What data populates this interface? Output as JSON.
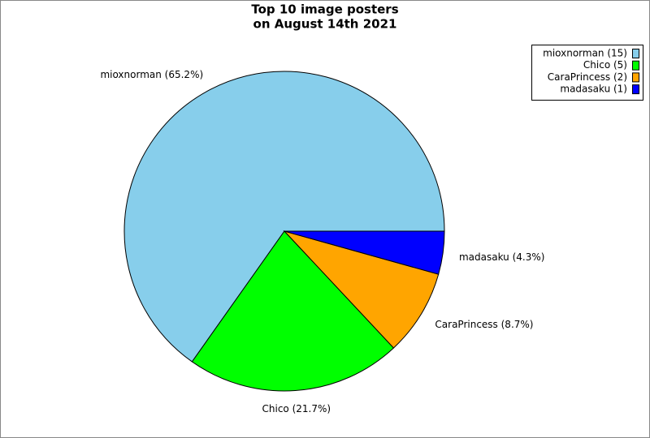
{
  "chart_data": {
    "type": "pie",
    "title": [
      "Top 10 image posters",
      "on August 14th 2021"
    ],
    "categories": [
      "mioxnorman",
      "Chico",
      "CaraPrincess",
      "madasaku"
    ],
    "values": [
      15,
      5,
      2,
      1
    ],
    "value_labels": [
      "mioxnorman (65.2%)",
      "Chico (21.7%)",
      "CaraPrincess (8.7%)",
      "madasaku (4.3%)"
    ],
    "legend_labels": [
      "mioxnorman (15)",
      "Chico (5)",
      "CaraPrincess (2)",
      "madasaku (1)"
    ],
    "colors": [
      "#87ceeb",
      "#00ff00",
      "#ffa500",
      "#0000ff"
    ],
    "legend": "top-right"
  }
}
